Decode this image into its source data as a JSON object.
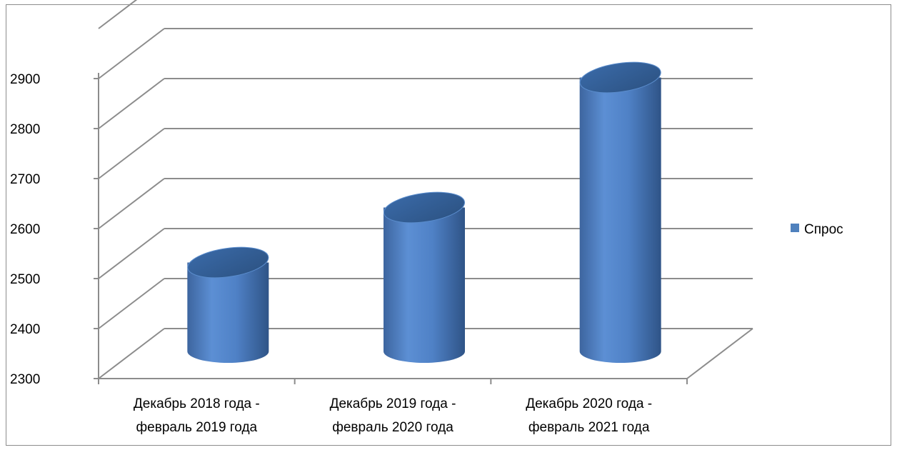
{
  "chart_data": {
    "type": "bar",
    "style": "3d-cylinder",
    "categories": [
      [
        "Декабрь 2018 года -",
        "февраль 2019 года"
      ],
      [
        "Декабрь 2019 года -",
        "февраль 2020 года"
      ],
      [
        "Декабрь 2020 года -",
        "февраль 2021 года"
      ]
    ],
    "series": [
      {
        "name": "Спрос",
        "values": [
          2505,
          2615,
          2875
        ],
        "color": "#4f81bd"
      }
    ],
    "yticks": [
      "2300",
      "2400",
      "2500",
      "2600",
      "2700",
      "2800",
      "2900"
    ],
    "ylim": [
      2300,
      3000
    ],
    "grid": true,
    "legend_position": "right"
  }
}
